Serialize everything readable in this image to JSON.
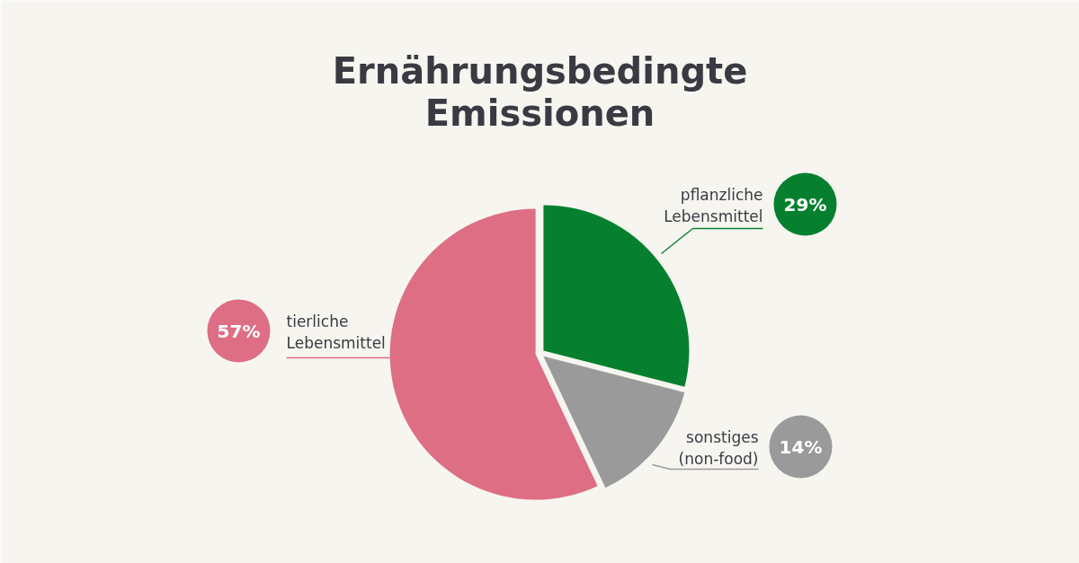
{
  "chart_data": {
    "type": "pie",
    "title": "Ernährungsbedingte\nEmissionen",
    "categories": [
      "pflanzliche Lebensmittel",
      "sonstiges (non-food)",
      "tierliche Lebensmittel"
    ],
    "values": [
      29,
      14,
      57
    ],
    "colors": [
      "#06802f",
      "#9a9a9a",
      "#dd6e84"
    ],
    "value_labels": [
      "29%",
      "14%",
      "57%"
    ]
  }
}
